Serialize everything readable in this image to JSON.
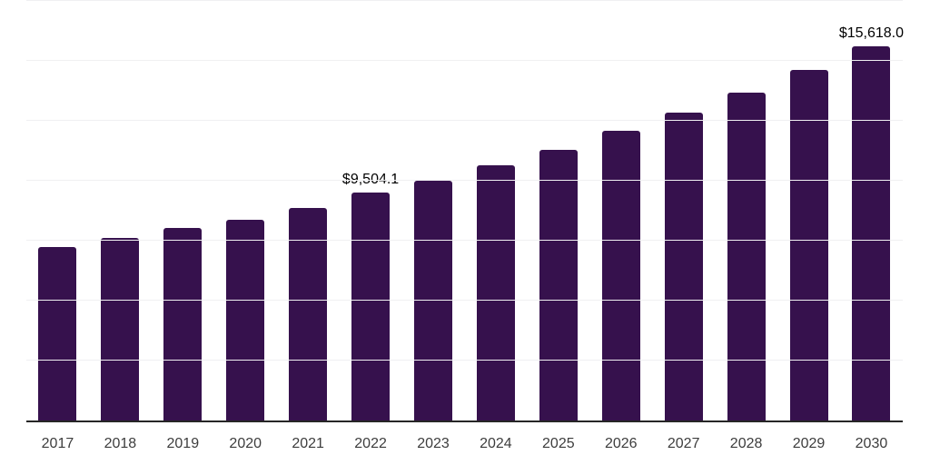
{
  "chart_style": {
    "background": "#ffffff",
    "bar_color": "#36114d",
    "axis_line_color": "#262626",
    "gridline_color": "#f0f0f2",
    "tick_label_color": "#3d3d3d",
    "data_label_color": "#000000"
  },
  "chart_data": {
    "type": "bar",
    "title": "",
    "xlabel": "",
    "ylabel": "",
    "categories": [
      "2017",
      "2018",
      "2019",
      "2020",
      "2021",
      "2022",
      "2023",
      "2024",
      "2025",
      "2026",
      "2027",
      "2028",
      "2029",
      "2030"
    ],
    "values": [
      7240,
      7630,
      8045,
      8370,
      8850,
      9504.1,
      10000,
      10650,
      11300,
      12070,
      12840,
      13670,
      14630,
      15618.0
    ],
    "data_labels": [
      "",
      "",
      "",
      "",
      "",
      "$9,504.1",
      "",
      "",
      "",
      "",
      "",
      "",
      "",
      "$15,618.0"
    ],
    "ylim": [
      0,
      17500
    ],
    "ytick_step": 2500,
    "yticks_shown": false,
    "grid": "horizontal",
    "legend": "none"
  }
}
